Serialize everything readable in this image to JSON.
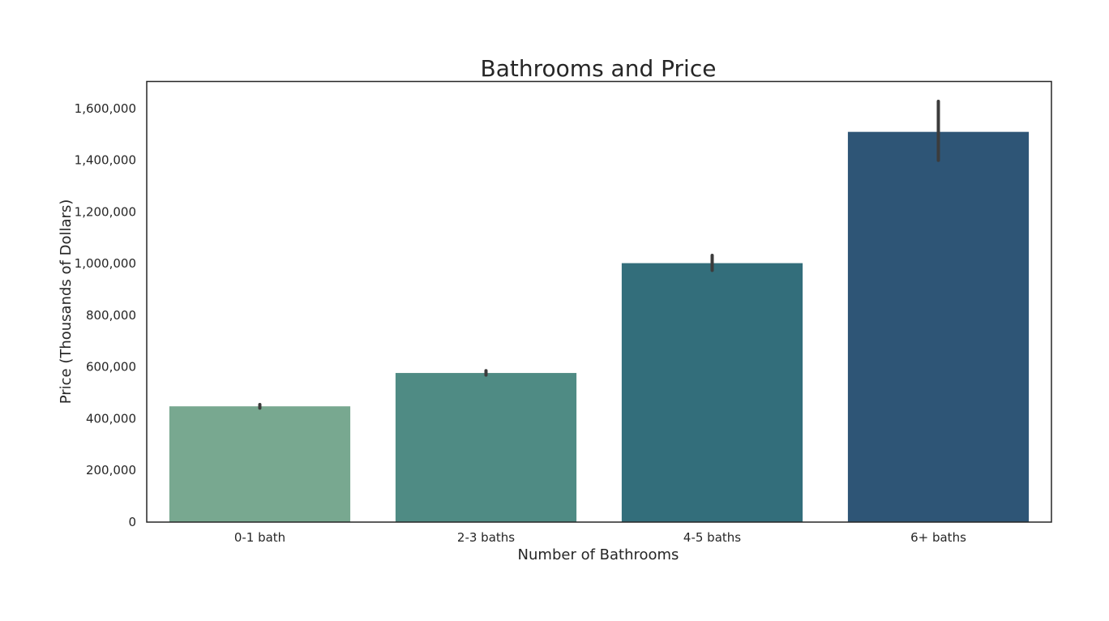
{
  "chart_data": {
    "type": "bar",
    "title": "Bathrooms and Price",
    "xlabel": "Number of Bathrooms",
    "ylabel": "Price (Thousands of Dollars)",
    "categories": [
      "0-1 bath",
      "2-3 baths",
      "4-5 baths",
      "6+ baths"
    ],
    "values": [
      448000,
      577000,
      1002000,
      1510000
    ],
    "error_bars": [
      [
        441000,
        455000
      ],
      [
        569000,
        586000
      ],
      [
        974000,
        1032000
      ],
      [
        1400000,
        1628000
      ]
    ],
    "bar_colors": [
      "#78a890",
      "#4f8b84",
      "#336e7b",
      "#2e5576"
    ],
    "error_color": "#3c3c3c",
    "ylim": [
      0,
      1705000
    ],
    "yticks": [
      0,
      200000,
      400000,
      600000,
      800000,
      1000000,
      1200000,
      1400000,
      1600000
    ],
    "ytick_labels": [
      "0",
      "200,000",
      "400,000",
      "600,000",
      "800,000",
      "1,000,000",
      "1,200,000",
      "1,400,000",
      "1,600,000"
    ],
    "grid": false,
    "legend": "none"
  }
}
